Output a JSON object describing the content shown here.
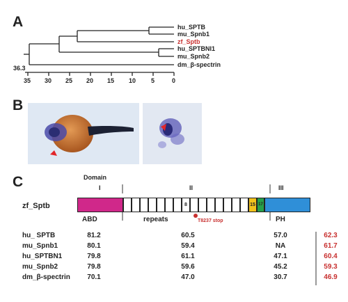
{
  "panels": {
    "a": "A",
    "b": "B",
    "c": "C"
  },
  "tree": {
    "taxa": [
      "hu_SPTB",
      "mu_Spnb1",
      "zf_Sptb",
      "hu_SPTBNI1",
      "mu_Spnb2",
      "dm_β-spectrin"
    ],
    "highlight_taxon": "zf_Sptb",
    "highlight_color": "#c8302f",
    "root_value": "36.3",
    "axis_ticks": [
      "35",
      "30",
      "25",
      "20",
      "15",
      "10",
      "5",
      "0"
    ]
  },
  "domain_figure": {
    "domain_label": "Domain",
    "domains": [
      "I",
      "II",
      "III"
    ],
    "protein_label": "zf_Sptb",
    "repeat_labels": {
      "r8": "8",
      "r15": "15",
      "r17": "17"
    },
    "sub_labels": {
      "abd": "ABD",
      "repeats": "repeats",
      "ph": "PH"
    },
    "mutation_label": "T8237 stop",
    "colors": {
      "abd": "#d0288a",
      "repeat": "#ffffff",
      "r15": "#f2c21c",
      "r17": "#27a04a",
      "ph": "#2f8fd8",
      "red": "#c8302f"
    }
  },
  "table": {
    "rows": [
      {
        "name": "hu_ SPTB",
        "abd": "81.2",
        "repeats": "60.5",
        "ph": "57.0",
        "total": "62.3"
      },
      {
        "name": "mu_Spnb1",
        "abd": "80.1",
        "repeats": "59.4",
        "ph": "NA",
        "total": "61.7"
      },
      {
        "name": "hu_SPTBN1",
        "abd": "79.8",
        "repeats": "61.1",
        "ph": "47.1",
        "total": "60.4"
      },
      {
        "name": "mu_Spnb2",
        "abd": "79.8",
        "repeats": "59.6",
        "ph": "45.2",
        "total": "59.3"
      },
      {
        "name": "dm_β-spectrin",
        "abd": "70.1",
        "repeats": "47.0",
        "ph": "30.7",
        "total": "46.9"
      }
    ]
  }
}
